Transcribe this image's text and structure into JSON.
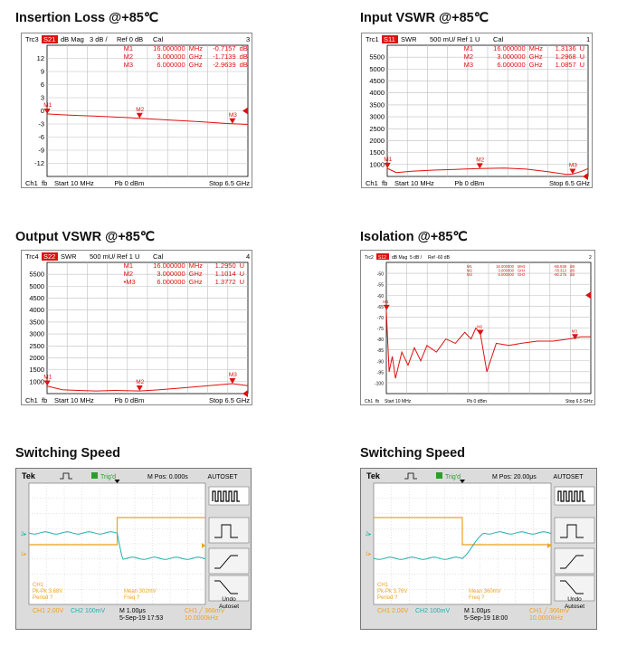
{
  "titles": {
    "p1": "Insertion Loss @+85℃",
    "p2": "Input VSWR @+85℃",
    "p3": "Output VSWR @+85℃",
    "p4": "Isolation @+85℃",
    "p5": "Switching Speed",
    "p6": "Switching Speed"
  },
  "colors": {
    "trace": "#e01010",
    "grid": "#bfbfbf",
    "frame": "#000000",
    "scope_ch1": "#f0a020",
    "scope_ch2": "#20b0b0",
    "scope_bg": "#ffffff"
  },
  "chart_data": [
    {
      "id": "il",
      "type": "line",
      "header": {
        "trc": "Trc3",
        "param": "S21",
        "fmt": "dB Mag",
        "scale": "3 dB /",
        "ref": "Ref 0 dB",
        "cal": "Cal",
        "num": "3"
      },
      "ytick_labels": [
        "12",
        "9",
        "6",
        "3",
        "0",
        "-3",
        "-6",
        "-9",
        "-12"
      ],
      "ylim": [
        -15,
        15
      ],
      "xlim": [
        0.01,
        6.5
      ],
      "ref_level": 0,
      "markers": [
        {
          "name": "M1",
          "label": "M1",
          "freq": "16.000000",
          "unit": "MHz",
          "value": "-0.7157",
          "vunit": "dB",
          "x": 0.016,
          "y": -0.72
        },
        {
          "name": "M2",
          "label": "M2",
          "freq": "3.000000",
          "unit": "GHz",
          "value": "-1.7139",
          "vunit": "dB",
          "x": 3.0,
          "y": -1.71
        },
        {
          "name": "M3",
          "label": "M3",
          "freq": "6.000000",
          "unit": "GHz",
          "value": "-2.9639",
          "vunit": "dB",
          "x": 6.0,
          "y": -2.96
        }
      ],
      "series": [
        {
          "x": [
            0.01,
            0.5,
            1,
            1.5,
            2,
            2.5,
            3,
            3.5,
            4,
            4.5,
            5,
            5.5,
            6,
            6.5
          ],
          "y": [
            -0.7,
            -0.9,
            -1.05,
            -1.2,
            -1.35,
            -1.5,
            -1.71,
            -1.9,
            -2.1,
            -2.3,
            -2.5,
            -2.75,
            -2.96,
            -3.1
          ]
        }
      ],
      "footer": {
        "ch": "Ch1",
        "fb": "fb",
        "start": "Start 10 MHz",
        "pb": "Pb  0 dBm",
        "stop": "Stop  6.5 GHz"
      }
    },
    {
      "id": "ivswr",
      "type": "line",
      "header": {
        "trc": "Trc1",
        "param": "S11",
        "fmt": "SWR",
        "scale": "500 mU/",
        "ref": "Ref 1 U",
        "cal": "Cal",
        "num": "1"
      },
      "ytick_labels": [
        "5500",
        "5000",
        "4500",
        "4000",
        "3500",
        "3000",
        "2500",
        "2000",
        "1500",
        "1000"
      ],
      "ylim": [
        1.0,
        6.0
      ],
      "xlim": [
        0.01,
        6.5
      ],
      "ref_level": 1.0,
      "markers": [
        {
          "name": "M1",
          "label": "M1",
          "freq": "16.000000",
          "unit": "MHz",
          "value": "1.3136",
          "vunit": "U",
          "x": 0.016,
          "y": 1.3136
        },
        {
          "name": "M2",
          "label": "M2",
          "freq": "3.000000",
          "unit": "GHz",
          "value": "1.2968",
          "vunit": "U",
          "x": 3.0,
          "y": 1.2968
        },
        {
          "name": "M3",
          "label": "M3",
          "freq": "6.000000",
          "unit": "GHz",
          "value": "1.0857",
          "vunit": "U",
          "x": 6.0,
          "y": 1.0857
        }
      ],
      "series": [
        {
          "x": [
            0.01,
            0.3,
            0.8,
            1.5,
            2.2,
            3.0,
            3.8,
            4.5,
            5.2,
            5.8,
            6.0,
            6.3,
            6.5
          ],
          "y": [
            1.31,
            1.15,
            1.2,
            1.24,
            1.27,
            1.3,
            1.32,
            1.28,
            1.18,
            1.08,
            1.09,
            1.2,
            1.3
          ]
        }
      ],
      "footer": {
        "ch": "Ch1",
        "fb": "fb",
        "start": "Start  10 MHz",
        "pb": "Pb  0 dBm",
        "stop": "Stop  6.5 GHz"
      }
    },
    {
      "id": "ovswr",
      "type": "line",
      "header": {
        "trc": "Trc4",
        "param": "S22",
        "fmt": "SWR",
        "scale": "500 mU/",
        "ref": "Ref 1 U",
        "cal": "Cal",
        "num": "4"
      },
      "ytick_labels": [
        "5500",
        "5000",
        "4500",
        "4000",
        "3500",
        "3000",
        "2500",
        "2000",
        "1500",
        "1000"
      ],
      "ylim": [
        1.0,
        6.0
      ],
      "xlim": [
        0.01,
        6.5
      ],
      "ref_level": 1.0,
      "markers": [
        {
          "name": "M1",
          "label": "M1",
          "freq": "16.000000",
          "unit": "MHz",
          "value": "1.2950",
          "vunit": "U",
          "x": 0.016,
          "y": 1.295
        },
        {
          "name": "M2",
          "label": "M2",
          "freq": "3.000000",
          "unit": "GHz",
          "value": "1.1014",
          "vunit": "U",
          "x": 3.0,
          "y": 1.1014
        },
        {
          "name": "M3",
          "label": "•M3",
          "freq": "6.000000",
          "unit": "GHz",
          "value": "1.3772",
          "vunit": "U",
          "x": 6.0,
          "y": 1.3772
        }
      ],
      "series": [
        {
          "x": [
            0.01,
            0.5,
            1.0,
            1.6,
            2.2,
            3.0,
            3.6,
            4.2,
            4.8,
            5.4,
            6.0,
            6.5
          ],
          "y": [
            1.29,
            1.15,
            1.12,
            1.1,
            1.12,
            1.1,
            1.14,
            1.2,
            1.26,
            1.32,
            1.38,
            1.3
          ]
        }
      ],
      "footer": {
        "ch": "Ch1",
        "fb": "fb",
        "start": "Start  10 MHz",
        "pb": "Pb  0 dBm",
        "stop": "Stop  6.5 GHz"
      }
    },
    {
      "id": "iso",
      "type": "line",
      "header": {
        "trc": "Trc2",
        "param": "S12",
        "fmt": "dB Mag",
        "scale": "5 dB /",
        "ref": "Ref -60 dB",
        "cal": "",
        "num": "2"
      },
      "ytick_labels": [
        "-50",
        "-55",
        "-60",
        "-65",
        "-70",
        "-75",
        "-80",
        "-85",
        "-90",
        "-95",
        "-100"
      ],
      "ylim": [
        -105,
        -45
      ],
      "xlim": [
        0.01,
        6.5
      ],
      "ref_level": -60,
      "markers": [
        {
          "name": "M1",
          "label": "M1",
          "freq": "16.000000",
          "unit": "MHz",
          "value": "-66.938",
          "vunit": "dB",
          "x": 0.016,
          "y": -66.9
        },
        {
          "name": "M2",
          "label": "M2",
          "freq": "3.000000",
          "unit": "GHz",
          "value": "-78.313",
          "vunit": "dB",
          "x": 3.0,
          "y": -78.3
        },
        {
          "name": "M3",
          "label": "M3",
          "freq": "6.000000",
          "unit": "GHz",
          "value": "-80.275",
          "vunit": "dB",
          "x": 6.0,
          "y": -80.3
        }
      ],
      "series": [
        {
          "x": [
            0.01,
            0.05,
            0.1,
            0.2,
            0.3,
            0.5,
            0.7,
            0.9,
            1.1,
            1.3,
            1.6,
            1.9,
            2.2,
            2.5,
            2.7,
            2.85,
            3.0,
            3.2,
            3.5,
            3.9,
            4.3,
            4.8,
            5.3,
            5.8,
            6.2,
            6.5
          ],
          "y": [
            -67,
            -80,
            -95,
            -88,
            -98,
            -86,
            -92,
            -84,
            -90,
            -83,
            -86,
            -80,
            -82,
            -77,
            -80,
            -75,
            -78,
            -95,
            -82,
            -83,
            -82,
            -81,
            -81,
            -80,
            -79,
            -79
          ]
        }
      ],
      "footer": {
        "ch": "Ch1",
        "fb": "fb",
        "start": "Start  10 MHz",
        "pb": "Pb  0 dBm",
        "stop": "Stop  6.5 GHz"
      }
    },
    {
      "id": "sw1",
      "type": "line",
      "scope": {
        "brand": "Tek",
        "trig": "Trig'd",
        "mpos": "M Pos: 0.000s",
        "autoset": "AUTOSET",
        "undo": "Undo",
        "undo2": "Autoset",
        "ch1_meas": [
          "CH1",
          "Pk-Pk 3.68V",
          "Period ?"
        ],
        "mean_meas": [
          "Mean 302mV",
          "Freq ?"
        ],
        "bottom": {
          "ch1": "CH1  2.00V",
          "ch2": "CH2  100mV",
          "m": "M 1.00μs",
          "date": "5-Sep-19 17:53",
          "ch1r": "CH1 ╱ 366mV",
          "freq": "10.0000kHz"
        }
      },
      "series": [
        {
          "name": "CH1",
          "x": [
            0,
            0.5,
            0.5,
            1
          ],
          "y": [
            1,
            1,
            0,
            0
          ]
        },
        {
          "name": "CH2",
          "x": [
            0,
            0.5,
            0.52,
            1
          ],
          "y": [
            1,
            1,
            0,
            0
          ]
        }
      ]
    },
    {
      "id": "sw2",
      "type": "line",
      "scope": {
        "brand": "Tek",
        "trig": "Trig'd",
        "mpos": "M Pos: 20.00μs",
        "autoset": "AUTOSET",
        "undo": "Undo",
        "undo2": "Autoset",
        "ch1_meas": [
          "CH1",
          "Pk-Pk 3.76V",
          "Period ?"
        ],
        "mean_meas": [
          "Mean 360mV",
          "Freq ?"
        ],
        "bottom": {
          "ch1": "CH1  2.00V",
          "ch2": "CH2  100mV",
          "m": "M 1.00μs",
          "date": "5-Sep-19 18:00",
          "ch1r": "CH1 ╱ 366mV",
          "freq": "10.0000kHz"
        }
      },
      "series": [
        {
          "name": "CH1",
          "x": [
            0,
            0.5,
            0.5,
            1
          ],
          "y": [
            1,
            1,
            0,
            0
          ]
        },
        {
          "name": "CH2",
          "x": [
            0,
            0.5,
            0.6,
            1
          ],
          "y": [
            0,
            0,
            1,
            1
          ]
        }
      ]
    }
  ]
}
